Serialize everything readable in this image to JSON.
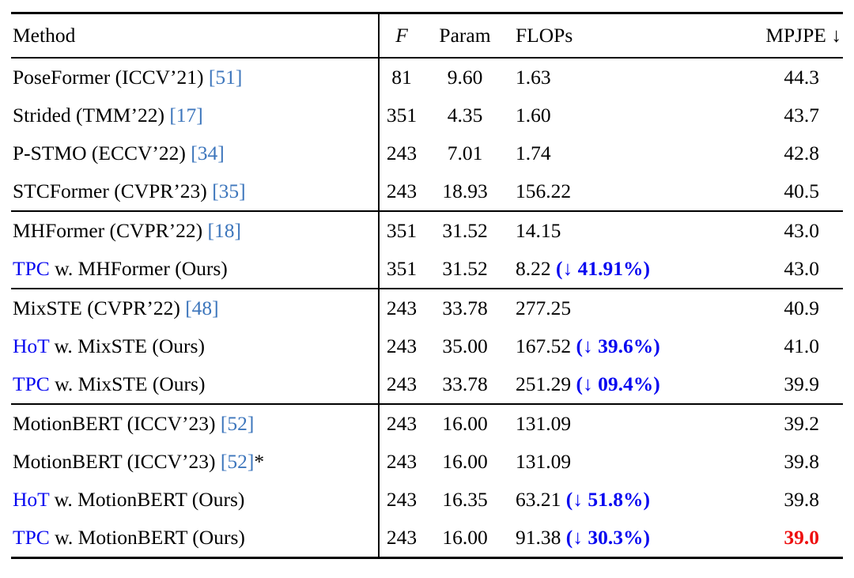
{
  "colors": {
    "citation_blue": "#3D76BC",
    "accent_blue": "#0808F0",
    "highlight_red": "#EE0F0F"
  },
  "header": {
    "method": "Method",
    "frames": "F",
    "param": "Param",
    "flops": "FLOPs",
    "mpjpe": "MPJPE ↓"
  },
  "groups": [
    {
      "rows": [
        {
          "prefix": "",
          "name": "PoseFormer (ICCV’21) ",
          "cite": "[51]",
          "star": "",
          "f": "81",
          "param": "9.60",
          "flops": "1.63",
          "drop": "",
          "mpjpe": "44.3"
        },
        {
          "prefix": "",
          "name": "Strided (TMM’22) ",
          "cite": "[17]",
          "star": "",
          "f": "351",
          "param": "4.35",
          "flops": "1.60",
          "drop": "",
          "mpjpe": "43.7"
        },
        {
          "prefix": "",
          "name": "P-STMO (ECCV’22) ",
          "cite": "[34]",
          "star": "",
          "f": "243",
          "param": "7.01",
          "flops": "1.74",
          "drop": "",
          "mpjpe": "42.8"
        },
        {
          "prefix": "",
          "name": "STCFormer (CVPR’23) ",
          "cite": "[35]",
          "star": "",
          "f": "243",
          "param": "18.93",
          "flops": "156.22",
          "drop": "",
          "mpjpe": "40.5"
        }
      ]
    },
    {
      "rows": [
        {
          "prefix": "",
          "name": "MHFormer (CVPR’22) ",
          "cite": "[18]",
          "star": "",
          "f": "351",
          "param": "31.52",
          "flops": "14.15",
          "drop": "",
          "mpjpe": "43.0"
        },
        {
          "prefix": "TPC",
          "name": " w. MHFormer (Ours)",
          "cite": "",
          "star": "",
          "f": "351",
          "param": "31.52",
          "flops": "8.22 ",
          "drop": "(↓ 41.91%)",
          "mpjpe": "43.0"
        }
      ]
    },
    {
      "rows": [
        {
          "prefix": "",
          "name": "MixSTE (CVPR’22) ",
          "cite": "[48]",
          "star": "",
          "f": "243",
          "param": "33.78",
          "flops": "277.25",
          "drop": "",
          "mpjpe": "40.9"
        },
        {
          "prefix": "HoT",
          "name": " w. MixSTE (Ours)",
          "cite": "",
          "star": "",
          "f": "243",
          "param": "35.00",
          "flops": "167.52 ",
          "drop": "(↓ 39.6%)",
          "mpjpe": "41.0"
        },
        {
          "prefix": "TPC",
          "name": " w. MixSTE (Ours)",
          "cite": "",
          "star": "",
          "f": "243",
          "param": "33.78",
          "flops": "251.29 ",
          "drop": "(↓ 09.4%)",
          "mpjpe": "39.9"
        }
      ]
    },
    {
      "rows": [
        {
          "prefix": "",
          "name": "MotionBERT (ICCV’23) ",
          "cite": "[52]",
          "star": "",
          "f": "243",
          "param": "16.00",
          "flops": "131.09",
          "drop": "",
          "mpjpe": "39.2"
        },
        {
          "prefix": "",
          "name": "MotionBERT (ICCV’23) ",
          "cite": "[52]",
          "star": "*",
          "f": "243",
          "param": "16.00",
          "flops": "131.09",
          "drop": "",
          "mpjpe": "39.8"
        },
        {
          "prefix": "HoT",
          "name": " w. MotionBERT (Ours)",
          "cite": "",
          "star": "",
          "f": "243",
          "param": "16.35",
          "flops": "63.21 ",
          "drop": "(↓ 51.8%)",
          "mpjpe": "39.8"
        },
        {
          "prefix": "TPC",
          "name": " w. MotionBERT (Ours)",
          "cite": "",
          "star": "",
          "f": "243",
          "param": "16.00",
          "flops": "91.38 ",
          "drop": "(↓ 30.3%)",
          "mpjpe": "39.0"
        }
      ]
    }
  ]
}
